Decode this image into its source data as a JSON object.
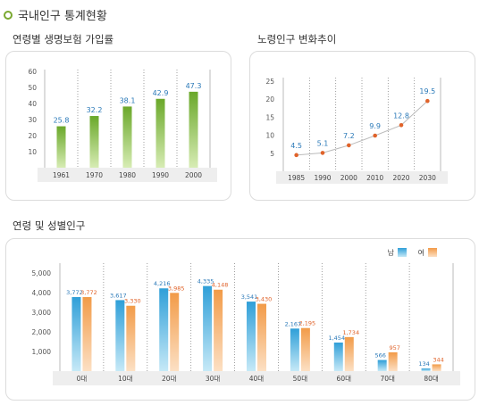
{
  "page_title": "국내인구 통계현황",
  "colors": {
    "bullet": "#7aa830",
    "green_bar": "#7cb82f",
    "blue_bar": "#3aa7dc",
    "orange_bar": "#f5a257",
    "line_dot": "#e0632a",
    "value_blue": "#2a79b8",
    "value_orange": "#e0632a"
  },
  "chart_data": [
    {
      "type": "bar",
      "title": "연령별 생명보험 가입률",
      "categories": [
        "1961",
        "1970",
        "1980",
        "1990",
        "2000"
      ],
      "values": [
        25.8,
        32.2,
        38.1,
        42.9,
        47.3
      ],
      "value_labels": [
        "25.8",
        "32.2",
        "38.1",
        "42.9",
        "47.3"
      ],
      "yticks": [
        "60",
        "50",
        "40",
        "30",
        "20",
        "10"
      ],
      "ylim": [
        0,
        60
      ],
      "grid": "vertical dotted"
    },
    {
      "type": "line",
      "title": "노령인구 변화추이",
      "categories": [
        "1985",
        "1990",
        "2000",
        "2010",
        "2020",
        "2030"
      ],
      "values": [
        4.5,
        5.1,
        7.2,
        9.9,
        12.8,
        19.5
      ],
      "value_labels": [
        "4.5",
        "5.1",
        "7.2",
        "9.9",
        "12.8",
        "19.5"
      ],
      "yticks": [
        "25",
        "20",
        "15",
        "10",
        "5"
      ],
      "ylim": [
        0,
        25
      ],
      "grid": "vertical dotted"
    },
    {
      "type": "bar",
      "title": "연령 및 성별인구",
      "categories": [
        "0대",
        "10대",
        "20대",
        "30대",
        "40대",
        "50대",
        "60대",
        "70대",
        "80대"
      ],
      "series": [
        {
          "name": "남",
          "values": [
            3772,
            3617,
            4216,
            4335,
            3541,
            2167,
            1454,
            566,
            134
          ],
          "labels": [
            "3,772",
            "3,617",
            "4,216",
            "4,335",
            "3,541",
            "2,167",
            "1,454",
            "566",
            "134"
          ]
        },
        {
          "name": "여",
          "values": [
            3772,
            3330,
            3985,
            4148,
            3430,
            2195,
            1734,
            957,
            344
          ],
          "labels": [
            "3,772",
            "3,330",
            "3,985",
            "4,148",
            "3,430",
            "2,195",
            "1,734",
            "957",
            "344"
          ]
        }
      ],
      "yticks": [
        "5,000",
        "4,000",
        "3,000",
        "2,000",
        "1,000"
      ],
      "ylim": [
        0,
        5500
      ],
      "legend": "top-right",
      "grid": "vertical dotted"
    }
  ]
}
